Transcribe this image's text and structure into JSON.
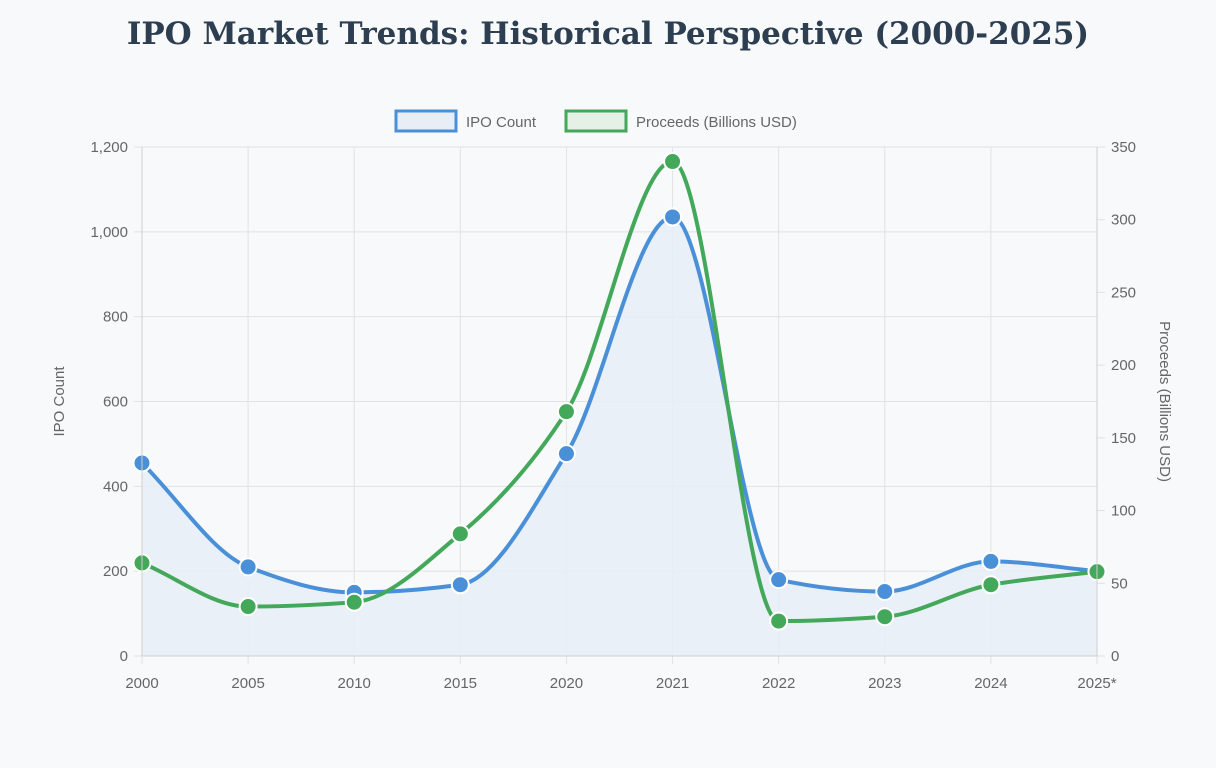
{
  "title": "IPO Market Trends: Historical Perspective (2000-2025)",
  "colors": {
    "ipo_count": "#4a90d9",
    "ipo_fill": "#e7eef6",
    "proceeds": "#43a85a",
    "grid": "#e2e2e2",
    "background": "#f7f9fb"
  },
  "chart_data": {
    "type": "line",
    "categories": [
      "2000",
      "2005",
      "2010",
      "2015",
      "2020",
      "2021",
      "2022",
      "2023",
      "2024",
      "2025*"
    ],
    "series": [
      {
        "name": "IPO Count",
        "axis": "left",
        "filled": true,
        "values": [
          455,
          210,
          150,
          168,
          477,
          1035,
          180,
          152,
          223,
          200
        ]
      },
      {
        "name": "Proceeds (Billions USD)",
        "axis": "right",
        "filled": false,
        "values": [
          64,
          34,
          37,
          84,
          168,
          340,
          24,
          27,
          49,
          58
        ]
      }
    ],
    "ylabel": "IPO Count",
    "y2label": "Proceeds (Billions USD)",
    "ylim": [
      0,
      1200
    ],
    "y2lim": [
      0,
      350
    ],
    "yticks": [
      "0",
      "200",
      "400",
      "600",
      "800",
      "1,000",
      "1,200"
    ],
    "y2ticks": [
      "0",
      "50",
      "100",
      "150",
      "200",
      "250",
      "300",
      "350"
    ],
    "grid": true,
    "legend_position": "top-center"
  }
}
